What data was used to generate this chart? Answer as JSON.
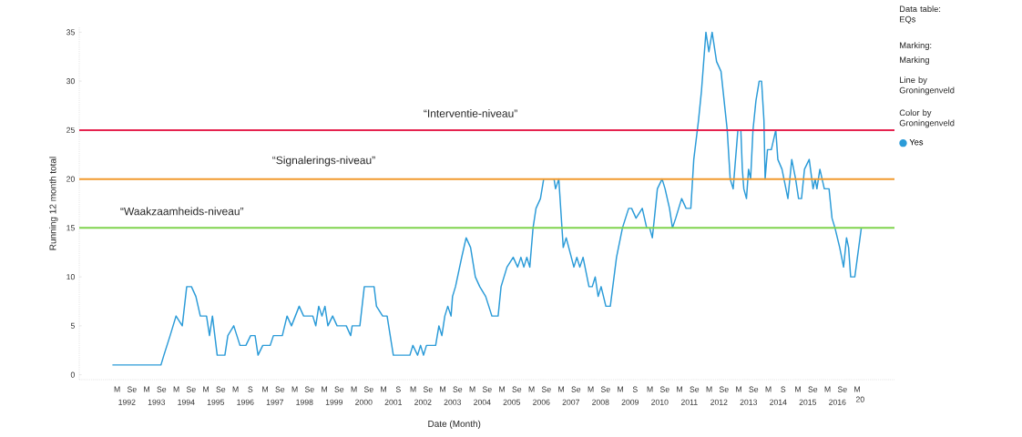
{
  "chart_data": {
    "type": "line",
    "xlabel": "Date (Month)",
    "ylabel": "Running 12 month total",
    "legend": "right",
    "legend_title": "Color by Groningenveld",
    "annotations": [
      "Data table: EQs",
      "Marking:",
      "Marking",
      "Line by Groningenveld",
      "M",
      "Se",
      "M",
      "Se",
      "M",
      "Se",
      "M",
      "Se",
      "M",
      "S",
      "M",
      "Se",
      "M",
      "Se",
      "M",
      "Se",
      "M",
      "Se",
      "M",
      "S",
      "M",
      "Se",
      "M",
      "Se",
      "M",
      "Se",
      "M",
      "Se",
      "M",
      "Se",
      "M",
      "Se",
      "M",
      "Se",
      "M",
      "S",
      "M",
      "Se",
      "M",
      "Se",
      "M",
      "Se",
      "M",
      "Se",
      "M",
      "S",
      "M",
      "Se",
      "M",
      "Se",
      "M",
      "20"
    ],
    "xlim": [
      1990.89,
      2018.43
    ],
    "ylim": [
      -0.5,
      35.5
    ],
    "yticks": [
      0,
      5,
      10,
      15,
      20,
      25,
      30,
      35
    ],
    "xticks": [
      {
        "value": 1992.5,
        "label": "1992"
      },
      {
        "value": 1993.5,
        "label": "1993"
      },
      {
        "value": 1994.5,
        "label": "1994"
      },
      {
        "value": 1995.5,
        "label": "1995"
      },
      {
        "value": 1996.5,
        "label": "1996"
      },
      {
        "value": 1997.5,
        "label": "1997"
      },
      {
        "value": 1998.5,
        "label": "1998"
      },
      {
        "value": 1999.5,
        "label": "1999"
      },
      {
        "value": 2000.5,
        "label": "2000"
      },
      {
        "value": 2001.5,
        "label": "2001"
      },
      {
        "value": 2002.5,
        "label": "2002"
      },
      {
        "value": 2003.5,
        "label": "2003"
      },
      {
        "value": 2004.5,
        "label": "2004"
      },
      {
        "value": 2005.5,
        "label": "2005"
      },
      {
        "value": 2006.5,
        "label": "2006"
      },
      {
        "value": 2007.5,
        "label": "2007"
      },
      {
        "value": 2008.5,
        "label": "2008"
      },
      {
        "value": 2009.5,
        "label": "2009"
      },
      {
        "value": 2010.5,
        "label": "2010"
      },
      {
        "value": 2011.5,
        "label": "2011"
      },
      {
        "value": 2012.5,
        "label": "2012"
      },
      {
        "value": 2013.5,
        "label": "2013"
      },
      {
        "value": 2014.5,
        "label": "2014"
      },
      {
        "value": 2015.5,
        "label": "2015"
      },
      {
        "value": 2016.5,
        "label": "2016"
      }
    ],
    "ref_lines": [
      {
        "axis": "y",
        "value": 15,
        "label": "“Waakzaamheids-niveau”",
        "color": "#7fd34e"
      },
      {
        "axis": "y",
        "value": 20,
        "label": "“Signalerings-niveau”",
        "color": "#f29a2e"
      },
      {
        "axis": "y",
        "value": 25,
        "label": "“Interventie-niveau”",
        "color": "#e5234f"
      }
    ],
    "x": [
      1992.01,
      1993.65,
      1993.75,
      1993.96,
      1994.16,
      1994.37,
      1994.52,
      1994.68,
      1994.83,
      1994.98,
      1995.19,
      1995.29,
      1995.39,
      1995.55,
      1995.81,
      1995.91,
      1996.11,
      1996.32,
      1996.52,
      1996.68,
      1996.83,
      1996.93,
      1997.09,
      1997.34,
      1997.45,
      1997.75,
      1997.91,
      1998.06,
      1998.32,
      1998.47,
      1998.78,
      1998.88,
      1998.98,
      1999.09,
      1999.19,
      1999.29,
      1999.45,
      1999.6,
      1999.91,
      2000.06,
      2000.11,
      2000.37,
      2000.52,
      2000.85,
      2000.93,
      2001.14,
      2001.29,
      2001.5,
      2002.06,
      2002.16,
      2002.32,
      2002.42,
      2002.52,
      2002.62,
      2002.93,
      2003.04,
      2003.14,
      2003.24,
      2003.34,
      2003.45,
      2003.5,
      2003.6,
      2003.81,
      2003.96,
      2004.11,
      2004.27,
      2004.42,
      2004.62,
      2004.83,
      2005.04,
      2005.14,
      2005.24,
      2005.34,
      2005.55,
      2005.7,
      2005.81,
      2005.91,
      2006.01,
      2006.11,
      2006.22,
      2006.32,
      2006.47,
      2006.58,
      2006.68,
      2006.93,
      2006.98,
      2007.09,
      2007.24,
      2007.34,
      2007.6,
      2007.7,
      2007.8,
      2007.91,
      2008.11,
      2008.22,
      2008.32,
      2008.42,
      2008.52,
      2008.68,
      2008.83,
      2009.04,
      2009.24,
      2009.45,
      2009.55,
      2009.7,
      2009.91,
      2010.06,
      2010.16,
      2010.25,
      2010.32,
      2010.42,
      2010.58,
      2010.68,
      2010.83,
      2010.93,
      2011.04,
      2011.14,
      2011.24,
      2011.39,
      2011.55,
      2011.65,
      2011.81,
      2011.91,
      2012.06,
      2012.16,
      2012.27,
      2012.42,
      2012.57,
      2012.78,
      2012.88,
      2012.98,
      2013.14,
      2013.24,
      2013.29,
      2013.34,
      2013.43,
      2013.5,
      2013.57,
      2013.65,
      2013.75,
      2013.86,
      2013.94,
      2014.02,
      2014.06,
      2014.14,
      2014.27,
      2014.42,
      2014.49,
      2014.63,
      2014.83,
      2014.96,
      2015.09,
      2015.19,
      2015.29,
      2015.39,
      2015.55,
      2015.68,
      2015.75,
      2015.81,
      2015.91,
      2016.06,
      2016.22,
      2016.32,
      2016.42,
      2016.58,
      2016.71,
      2016.81,
      2016.88,
      2016.95,
      2017.09,
      2017.31
    ],
    "series": [
      {
        "name": "Yes",
        "color": "#2b9bd8",
        "values": [
          1,
          1,
          2,
          4,
          6,
          5,
          9,
          9,
          8,
          6,
          6,
          4,
          6,
          2,
          2,
          4,
          5,
          3,
          3,
          4,
          4,
          2,
          3,
          3,
          4,
          4,
          6,
          5,
          7,
          6,
          6,
          5,
          7,
          6,
          7,
          5,
          6,
          5,
          5,
          4,
          5,
          5,
          9,
          9,
          7,
          6,
          6,
          2,
          2,
          3,
          2,
          3,
          2,
          3,
          3,
          5,
          4,
          6,
          7,
          6,
          8,
          9,
          12,
          14,
          13,
          10,
          9,
          8,
          6,
          6,
          9,
          10,
          11,
          12,
          11,
          12,
          11,
          12,
          11,
          15,
          17,
          18,
          20,
          20,
          20,
          19,
          20,
          13,
          14,
          11,
          12,
          11,
          12,
          9,
          9,
          10,
          8,
          9,
          7,
          7,
          12,
          15,
          17,
          17,
          16,
          17,
          15,
          15,
          14,
          16,
          19,
          20,
          19,
          17,
          15,
          16,
          17,
          18,
          17,
          17,
          22,
          26,
          29,
          35,
          33,
          35,
          32,
          31,
          25,
          20,
          19,
          25,
          25,
          21,
          19,
          18,
          21,
          20,
          25,
          28,
          30,
          30,
          26,
          20,
          23,
          23,
          25,
          22,
          21,
          18,
          22,
          20,
          18,
          18,
          21,
          22,
          19,
          20,
          19,
          21,
          19,
          19,
          16,
          15,
          13,
          11,
          14,
          13,
          10,
          10,
          15
        ]
      }
    ]
  }
}
